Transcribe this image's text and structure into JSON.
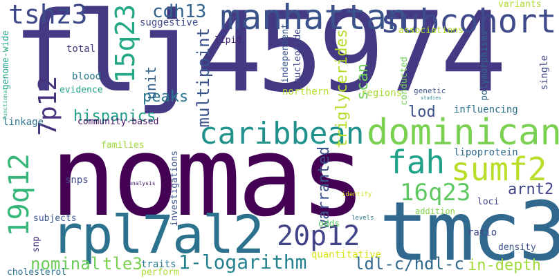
{
  "words": [
    {
      "text": "flj45974",
      "color": "#443a83"
    },
    {
      "text": "nomas",
      "color": "#440154"
    },
    {
      "text": "tmc3",
      "color": "#31688e"
    },
    {
      "text": "rpl7al2",
      "color": "#2c728e"
    },
    {
      "text": "manhattan",
      "color": "#3b528b"
    },
    {
      "text": "subcohort",
      "color": "#3e4a89"
    },
    {
      "text": "dominican",
      "color": "#7ad151"
    },
    {
      "text": "caribbean",
      "color": "#21918c"
    },
    {
      "text": "tshz3",
      "color": "#3e4989"
    },
    {
      "text": "sumf2",
      "color": "#b8de29"
    },
    {
      "text": "fah",
      "color": "#1fa187"
    },
    {
      "text": "16q23",
      "color": "#5ec962"
    },
    {
      "text": "20p12",
      "color": "#414487"
    },
    {
      "text": "15q23",
      "color": "#22a884"
    },
    {
      "text": "19q12",
      "color": "#35b779"
    },
    {
      "text": "7p12",
      "color": "#46327e"
    },
    {
      "text": "1-logarithm",
      "color": "#26828e"
    },
    {
      "text": "hispanics",
      "color": "#1f9e89"
    },
    {
      "text": "multipoint",
      "color": "#3b528b"
    },
    {
      "text": "cdh13",
      "color": "#33638d"
    },
    {
      "text": "ldl-c/hdl-c",
      "color": "#31688e"
    },
    {
      "text": "tle3",
      "color": "#7ad151"
    },
    {
      "text": "nominal",
      "color": "#6ccd5a"
    },
    {
      "text": "arnt2",
      "color": "#414487"
    },
    {
      "text": "in-depth",
      "color": "#a0da39"
    },
    {
      "text": "warranted",
      "color": "#3b528b"
    },
    {
      "text": "triglycerides",
      "color": "#b5de2b"
    },
    {
      "text": "peaks",
      "color": "#2a788e"
    },
    {
      "text": "unit",
      "color": "#33638d"
    },
    {
      "text": "scan",
      "color": "#6ccd5a"
    },
    {
      "text": "lod",
      "color": "#3b528b"
    },
    {
      "text": "community-based",
      "color": "#471063"
    },
    {
      "text": "influencing",
      "color": "#2d708e"
    },
    {
      "text": "independent",
      "color": "#39568c"
    },
    {
      "text": "nucleotide",
      "color": "#3e4989"
    },
    {
      "text": "conducted",
      "color": "#73d056"
    },
    {
      "text": "polymorphisms",
      "color": "#31688e"
    },
    {
      "text": "northern",
      "color": "#b5de2b"
    },
    {
      "text": "regions",
      "color": "#a8db34"
    },
    {
      "text": "genetic",
      "color": "#3b528b"
    },
    {
      "text": "studies",
      "color": "#27808e"
    },
    {
      "text": "associations",
      "color": "#b5de2b"
    },
    {
      "text": "suggestive",
      "color": "#3e4989"
    },
    {
      "text": "lipid",
      "color": "#482374"
    },
    {
      "text": "total",
      "color": "#453781"
    },
    {
      "text": "blood",
      "color": "#2a788e"
    },
    {
      "text": "evidence",
      "color": "#20a386"
    },
    {
      "text": "linkage",
      "color": "#2c728e"
    },
    {
      "text": "families",
      "color": "#a0da39"
    },
    {
      "text": "lipoprotein",
      "color": "#31688e"
    },
    {
      "text": "snps",
      "color": "#3e4a89"
    },
    {
      "text": "analysis",
      "color": "#481a6c"
    },
    {
      "text": "investigations",
      "color": "#3b528b"
    },
    {
      "text": "identify",
      "color": "#d2e21b"
    },
    {
      "text": "addition",
      "color": "#84d44b"
    },
    {
      "text": "loci",
      "color": "#414487"
    },
    {
      "text": "levels",
      "color": "#2c728e"
    },
    {
      "text": "odds",
      "color": "#5ec962"
    },
    {
      "text": "ratio",
      "color": "#3e4989"
    },
    {
      "text": "quantitative",
      "color": "#d8e219"
    },
    {
      "text": "density",
      "color": "#3b528b"
    },
    {
      "text": "subjects",
      "color": "#39568c"
    },
    {
      "text": "snp",
      "color": "#46327e"
    },
    {
      "text": "traits",
      "color": "#2a788e"
    },
    {
      "text": "perform",
      "color": "#addc30"
    },
    {
      "text": "cholesterol",
      "color": "#2c728e"
    },
    {
      "text": "genome-wide",
      "color": "#20a386"
    },
    {
      "text": "functional",
      "color": "#2fb47c"
    },
    {
      "text": "variants",
      "color": "#addc30"
    },
    {
      "text": "single",
      "color": "#3e4989"
    }
  ]
}
